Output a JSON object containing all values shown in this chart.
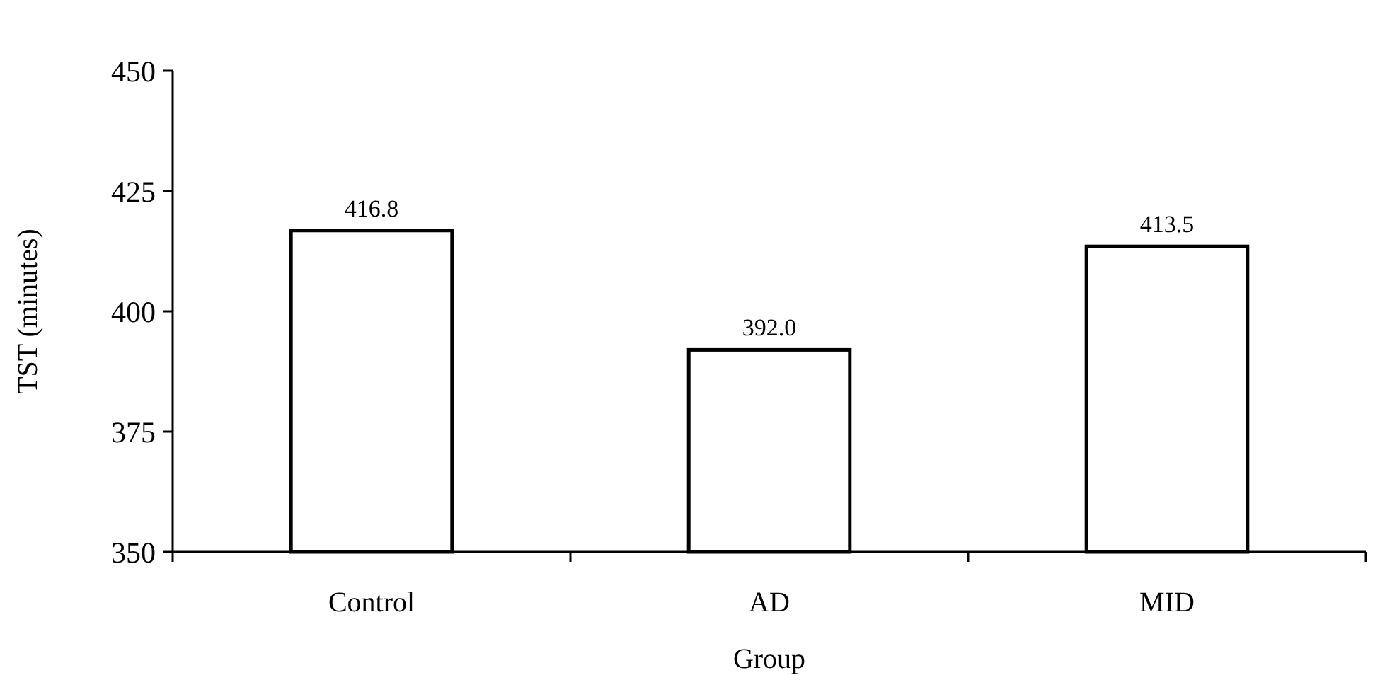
{
  "chart_data": {
    "type": "bar",
    "xlabel": "Group",
    "ylabel": "TST (minutes)",
    "categories": [
      "Control",
      "AD",
      "MID"
    ],
    "values": [
      416.8,
      392.0,
      413.5
    ],
    "value_labels": [
      "416.8",
      "392.0",
      "413.5"
    ],
    "color": "#ffffff",
    "ylim": [
      350,
      450
    ],
    "yticks": [
      350,
      375,
      400,
      425,
      450
    ],
    "grid": false
  }
}
